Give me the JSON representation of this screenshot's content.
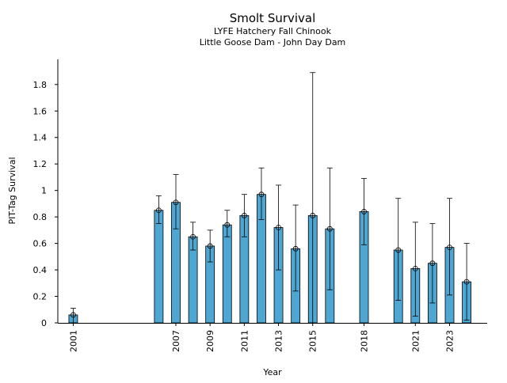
{
  "chart_data": {
    "type": "bar",
    "title": "Smolt Survival",
    "subtitle_1": "LYFE Hatchery Fall Chinook",
    "subtitle_2": "Little Goose Dam - John Day Dam",
    "xlabel": "Year",
    "ylabel": "PIT-Tag Survival",
    "ylim": [
      0,
      1.99
    ],
    "xlim": [
      2000.1,
      2025.2
    ],
    "y_ticks": [
      0,
      0.2,
      0.4,
      0.6,
      0.8,
      1,
      1.2,
      1.4,
      1.6,
      1.8
    ],
    "y_tick_labels": [
      "0",
      "0.2",
      "0.4",
      "0.6",
      "0.8",
      "1",
      "1.2",
      "1.4",
      "1.6",
      "1.8"
    ],
    "x_ticks": [
      2001,
      2007,
      2009,
      2011,
      2013,
      2015,
      2018,
      2021,
      2023
    ],
    "x_tick_labels": [
      "2001",
      "2007",
      "2009",
      "2011",
      "2013",
      "2015",
      "2018",
      "2021",
      "2023"
    ],
    "bar_color": "#4ea6d2",
    "grid": false,
    "legend": "none",
    "points": [
      {
        "x": 2001,
        "y": 0.06,
        "low": 0.0,
        "high": 0.11
      },
      {
        "x": 2006,
        "y": 0.85,
        "low": 0.75,
        "high": 0.96
      },
      {
        "x": 2007,
        "y": 0.91,
        "low": 0.71,
        "high": 1.12
      },
      {
        "x": 2008,
        "y": 0.65,
        "low": 0.55,
        "high": 0.76
      },
      {
        "x": 2009,
        "y": 0.58,
        "low": 0.46,
        "high": 0.7
      },
      {
        "x": 2010,
        "y": 0.74,
        "low": 0.65,
        "high": 0.85
      },
      {
        "x": 2011,
        "y": 0.81,
        "low": 0.65,
        "high": 0.97
      },
      {
        "x": 2012,
        "y": 0.97,
        "low": 0.78,
        "high": 1.17
      },
      {
        "x": 2013,
        "y": 0.72,
        "low": 0.4,
        "high": 1.04
      },
      {
        "x": 2014,
        "y": 0.56,
        "low": 0.24,
        "high": 0.89
      },
      {
        "x": 2015,
        "y": 0.81,
        "low": 0.0,
        "high": 1.89
      },
      {
        "x": 2016,
        "y": 0.71,
        "low": 0.25,
        "high": 1.17
      },
      {
        "x": 2018,
        "y": 0.84,
        "low": 0.59,
        "high": 1.09
      },
      {
        "x": 2020,
        "y": 0.55,
        "low": 0.17,
        "high": 0.94
      },
      {
        "x": 2021,
        "y": 0.41,
        "low": 0.05,
        "high": 0.76
      },
      {
        "x": 2022,
        "y": 0.45,
        "low": 0.15,
        "high": 0.75
      },
      {
        "x": 2023,
        "y": 0.57,
        "low": 0.21,
        "high": 0.94
      },
      {
        "x": 2024,
        "y": 0.31,
        "low": 0.02,
        "high": 0.6
      }
    ]
  }
}
